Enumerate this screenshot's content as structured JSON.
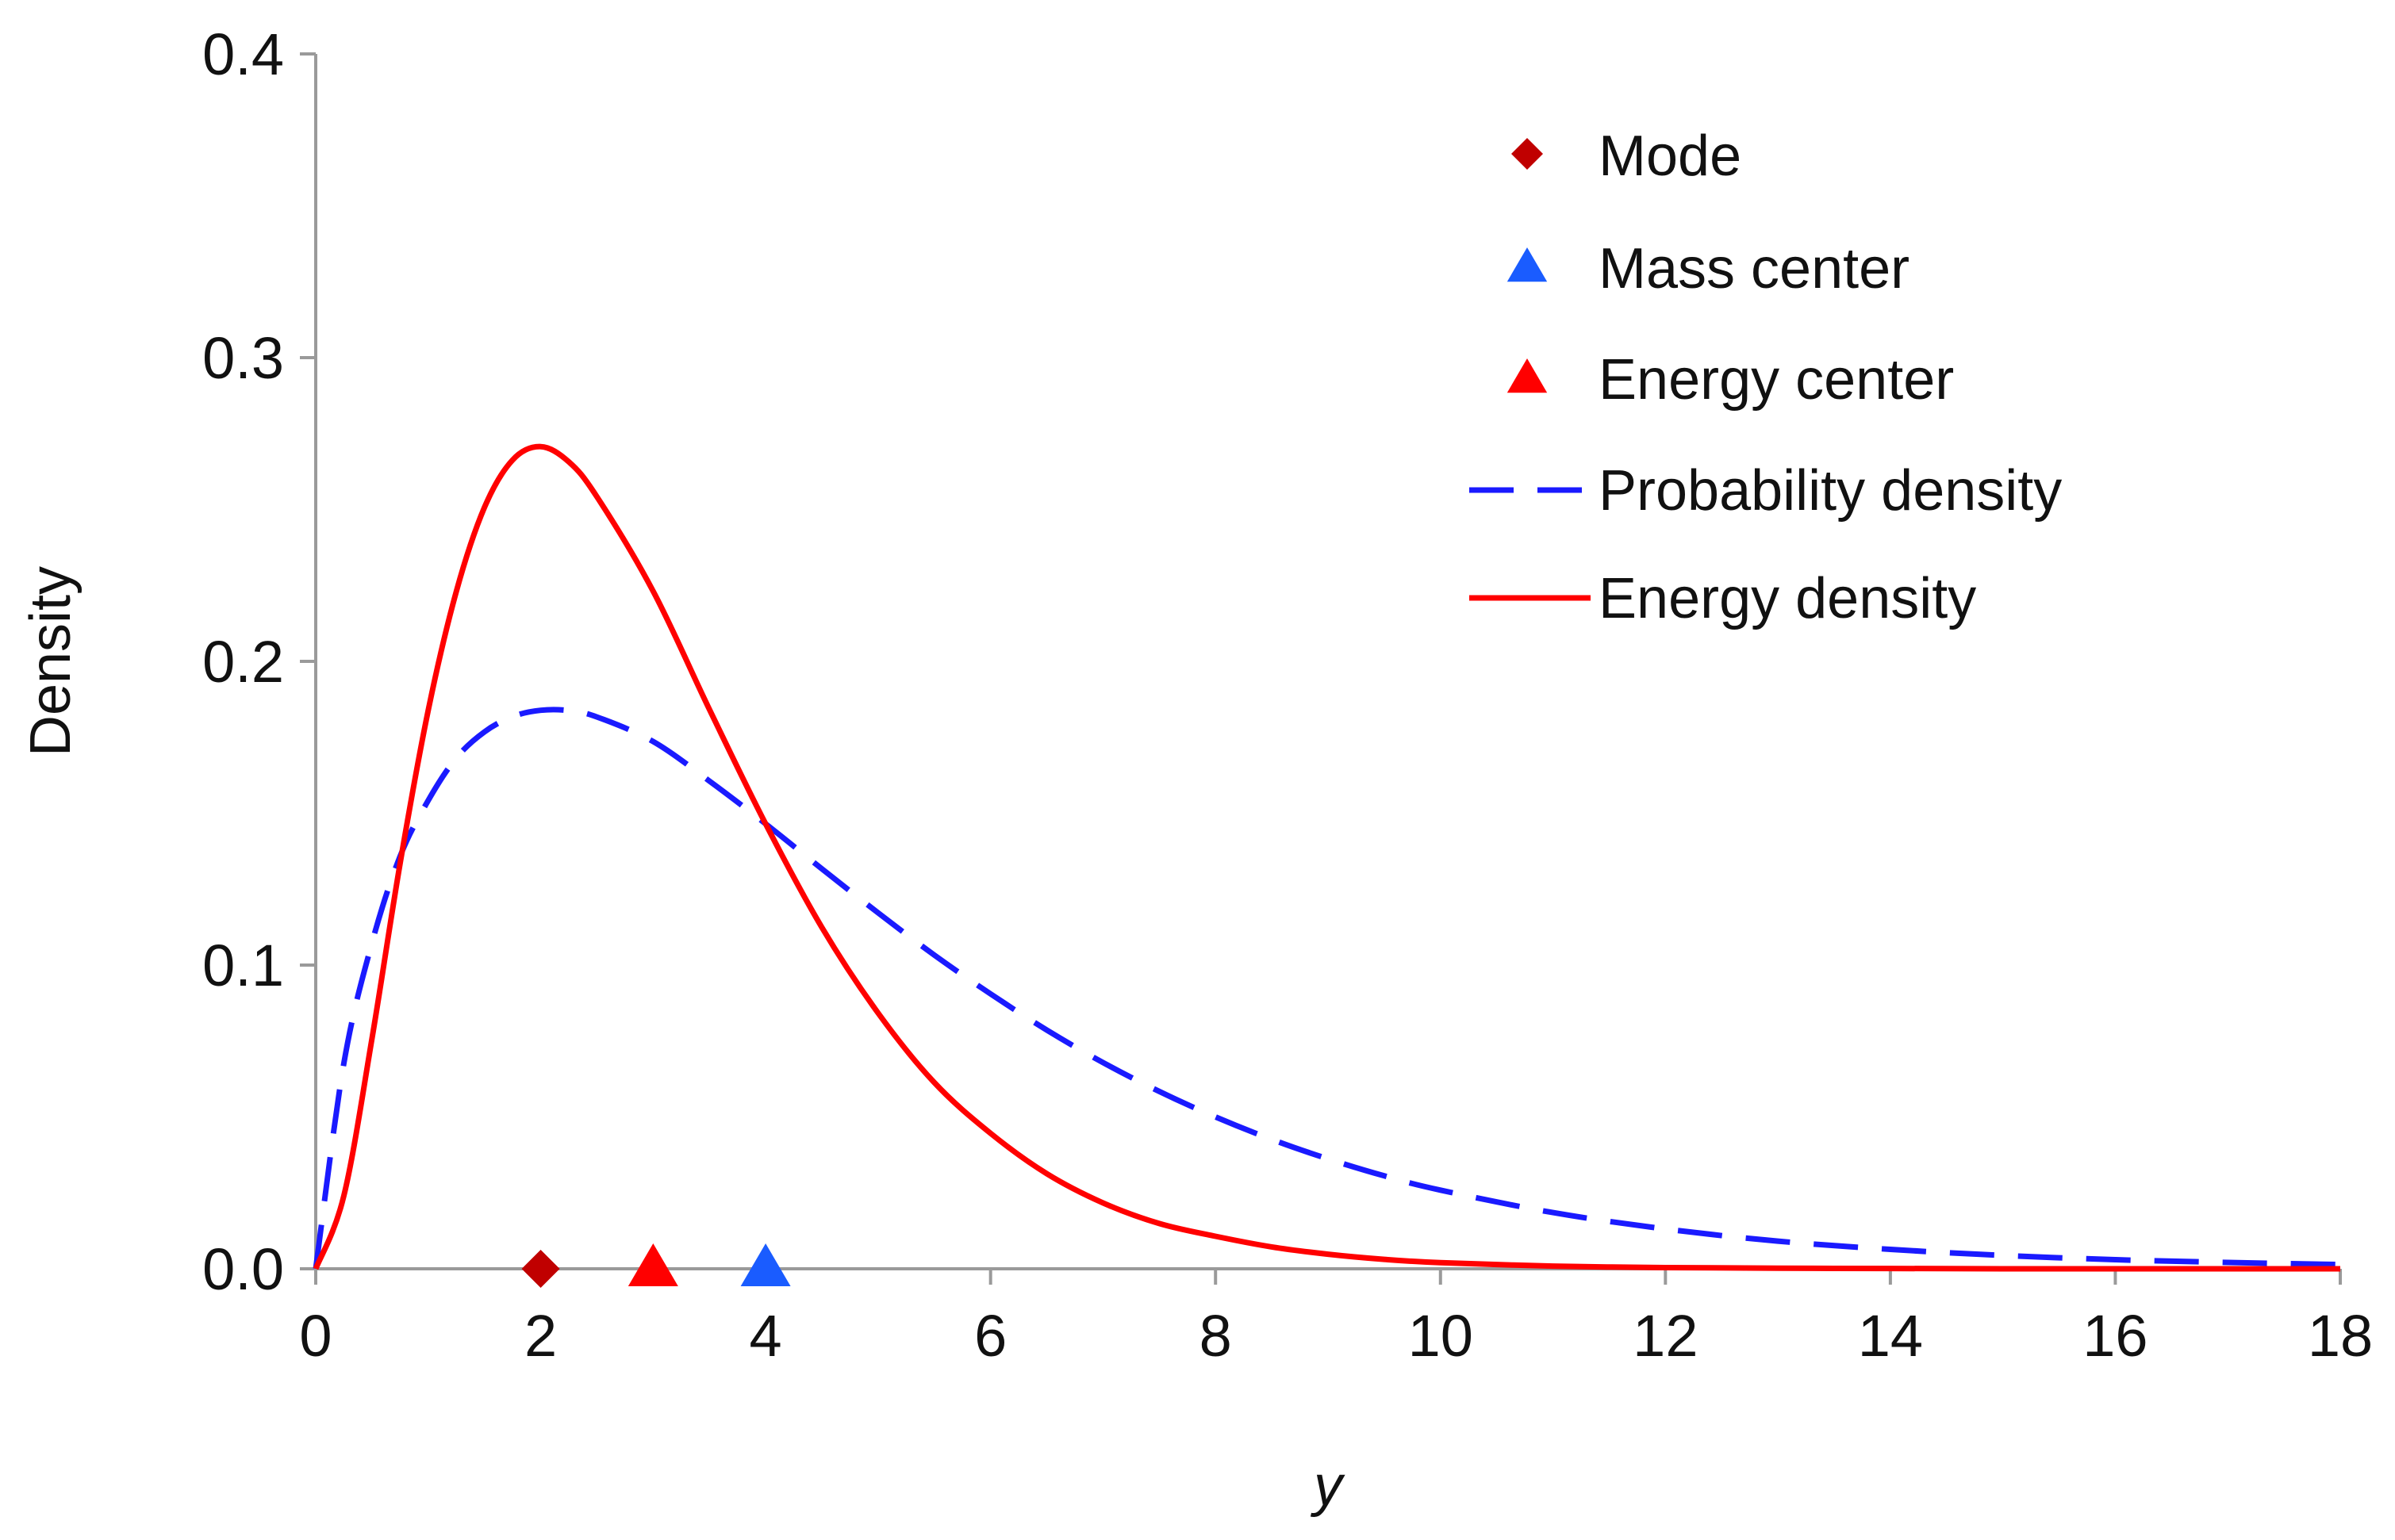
{
  "chart_data": {
    "type": "line",
    "title": "",
    "xlabel": "y",
    "ylabel": "Density",
    "xlim": [
      0,
      18
    ],
    "ylim": [
      0,
      0.4
    ],
    "xticks": [
      0,
      2,
      4,
      6,
      8,
      10,
      12,
      14,
      16,
      18
    ],
    "xtick_labels": [
      "0",
      "2",
      "4",
      "6",
      "8",
      "10",
      "12",
      "14",
      "16",
      "18"
    ],
    "yticks": [
      0,
      0.1,
      0.2,
      0.3,
      0.4
    ],
    "ytick_labels": [
      "0.0",
      "0.1",
      "0.2",
      "0.3",
      "0.4"
    ],
    "grid": false,
    "legend_position": "top-right",
    "series": [
      {
        "name": "Probability density",
        "style": "dashed",
        "color": "#1a1aff",
        "x": [
          0,
          0.25,
          0.5,
          0.75,
          1,
          1.25,
          1.5,
          1.75,
          2,
          2.25,
          2.5,
          3,
          3.5,
          4,
          4.5,
          5,
          5.5,
          6,
          6.5,
          7,
          7.5,
          8,
          8.5,
          9,
          9.5,
          10,
          11,
          12,
          13,
          14,
          15,
          16,
          17,
          18
        ],
        "values": [
          0,
          0.0676,
          0.1073,
          0.1358,
          0.1542,
          0.1682,
          0.1768,
          0.1818,
          0.1839,
          0.1838,
          0.1817,
          0.1736,
          0.1606,
          0.1465,
          0.1317,
          0.1172,
          0.1033,
          0.0905,
          0.0786,
          0.0679,
          0.0584,
          0.05,
          0.0426,
          0.0362,
          0.0306,
          0.0259,
          0.0185,
          0.0131,
          0.0091,
          0.0064,
          0.0044,
          0.003,
          0.0021,
          0.0014
        ]
      },
      {
        "name": "Energy density",
        "style": "solid",
        "color": "#ff0000",
        "x": [
          0,
          0.25,
          0.5,
          0.75,
          1,
          1.25,
          1.5,
          1.75,
          2,
          2.25,
          2.5,
          3,
          3.5,
          4,
          4.5,
          5,
          5.5,
          6,
          6.5,
          7,
          7.5,
          8,
          8.5,
          9,
          9.5,
          10,
          11,
          12,
          13,
          14,
          15,
          16,
          17,
          18
        ],
        "values": [
          0,
          0.024,
          0.0758,
          0.1334,
          0.1839,
          0.223,
          0.2507,
          0.2663,
          0.2707,
          0.2657,
          0.2542,
          0.2231,
          0.1842,
          0.1465,
          0.1124,
          0.0842,
          0.0613,
          0.0446,
          0.0313,
          0.0217,
          0.0149,
          0.0107,
          0.0072,
          0.0048,
          0.0031,
          0.002,
          0.0009,
          0.0004,
          0.0002,
          0.0001,
          0,
          0,
          0,
          0
        ]
      }
    ],
    "markers": [
      {
        "name": "Mode",
        "shape": "diamond",
        "color": "#c00000",
        "x": 2,
        "y": 0
      },
      {
        "name": "Mass center",
        "shape": "triangle",
        "color": "#1a5cff",
        "x": 4,
        "y": 0
      },
      {
        "name": "Energy center",
        "shape": "triangle",
        "color": "#ff0000",
        "x": 3,
        "y": 0
      }
    ],
    "legend": [
      {
        "label": "Mode",
        "kind": "diamond",
        "color": "#c00000"
      },
      {
        "label": "Mass center",
        "kind": "triangle",
        "color": "#1a5cff"
      },
      {
        "label": "Energy center",
        "kind": "triangle",
        "color": "#ff0000"
      },
      {
        "label": "Probability density",
        "kind": "dashed",
        "color": "#1a1aff"
      },
      {
        "label": "Energy density",
        "kind": "solid",
        "color": "#ff0000"
      }
    ]
  }
}
